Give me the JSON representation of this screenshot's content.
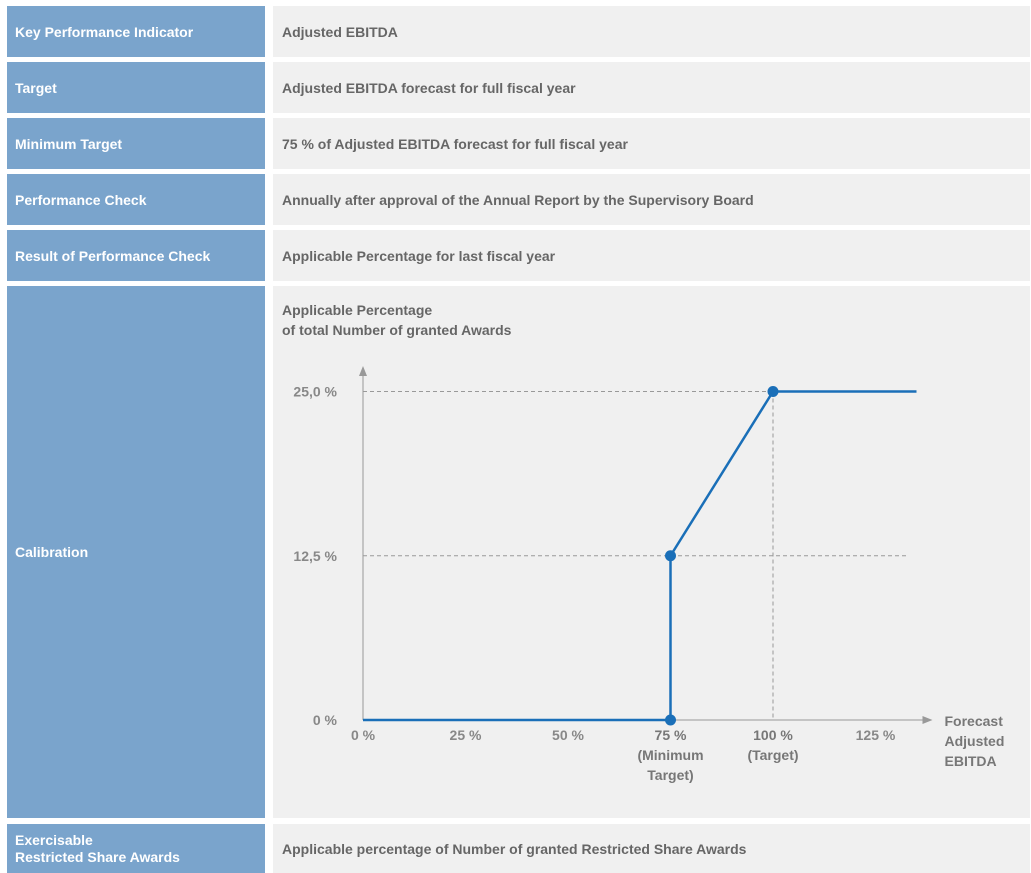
{
  "rows": {
    "kpi": {
      "label": "Key Performance Indicator",
      "value": "Adjusted EBITDA"
    },
    "target": {
      "label": "Target",
      "value": "Adjusted EBITDA forecast for full fiscal year"
    },
    "minimum_target": {
      "label": "Minimum Target",
      "value": "75 % of Adjusted EBITDA forecast for full fiscal year"
    },
    "performance_check": {
      "label": "Performance Check",
      "value": "Annually after approval of the Annual Report by the Supervisory Board"
    },
    "result": {
      "label": "Result of Performance Check",
      "value": "Applicable Percentage for last fiscal year"
    },
    "calibration": {
      "label": "Calibration"
    },
    "exercisable": {
      "label_line1": "Exercisable",
      "label_line2": "Restricted Share Awards",
      "value": "Applicable percentage of Number of granted Restricted Share Awards"
    }
  },
  "chart_data": {
    "type": "line",
    "title_line1": "Applicable Percentage",
    "title_line2": "of total Number of granted Awards",
    "xlabel_lines": [
      "Forecast",
      "Adjusted",
      "EBITDA"
    ],
    "x_ticks": [
      {
        "value": 0,
        "lines": [
          "0 %"
        ],
        "bold": false
      },
      {
        "value": 25,
        "lines": [
          "25 %"
        ],
        "bold": false
      },
      {
        "value": 50,
        "lines": [
          "50 %"
        ],
        "bold": false
      },
      {
        "value": 75,
        "lines": [
          "75 %",
          "(Minimum",
          "Target)"
        ],
        "bold": true
      },
      {
        "value": 100,
        "lines": [
          "100 %",
          "(Target)"
        ],
        "bold": true
      },
      {
        "value": 125,
        "lines": [
          "125 %"
        ],
        "bold": false
      }
    ],
    "y_ticks": [
      {
        "value": 0,
        "label": "0 %"
      },
      {
        "value": 12.5,
        "label": "12,5 %"
      },
      {
        "value": 25,
        "label": "25,0 %"
      }
    ],
    "series": [
      {
        "x": [
          0,
          75,
          75,
          100,
          135
        ],
        "y": [
          0,
          0,
          12.5,
          25,
          25
        ]
      }
    ],
    "points": [
      {
        "x": 75,
        "y": 0
      },
      {
        "x": 75,
        "y": 12.5
      },
      {
        "x": 100,
        "y": 25
      }
    ],
    "reference_lines": [
      {
        "type": "horizontal",
        "y": 25
      },
      {
        "type": "horizontal",
        "y": 12.5
      },
      {
        "type": "vertical",
        "x": 100
      }
    ],
    "xlim": [
      0,
      135
    ],
    "ylim": [
      0,
      25
    ],
    "line_color": "#1a6fb8",
    "grid": false
  }
}
